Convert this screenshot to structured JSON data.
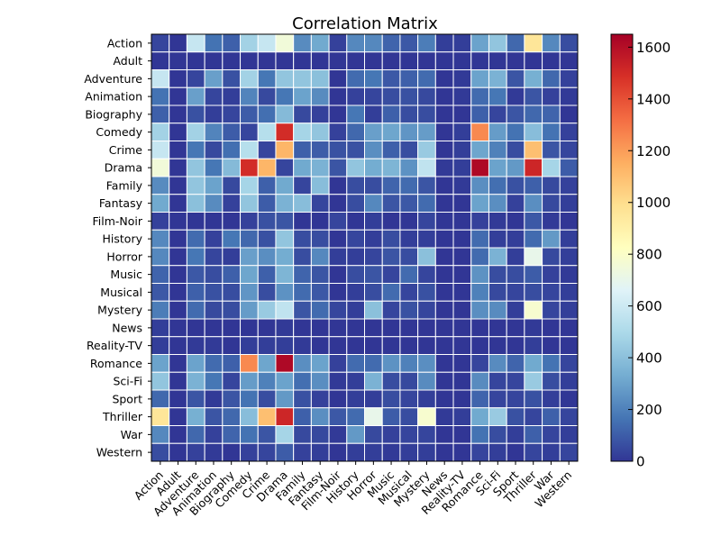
{
  "chart_data": {
    "type": "heatmap",
    "title": "Correlation Matrix",
    "categories": [
      "Action",
      "Adult",
      "Adventure",
      "Animation",
      "Biography",
      "Comedy",
      "Crime",
      "Drama",
      "Family",
      "Fantasy",
      "Film-Noir",
      "History",
      "Horror",
      "Music",
      "Musical",
      "Mystery",
      "News",
      "Reality-TV",
      "Romance",
      "Sci-Fi",
      "Sport",
      "Thriller",
      "War",
      "Western"
    ],
    "colorbar": {
      "min": 0,
      "max": 1650,
      "ticks": [
        0,
        200,
        400,
        600,
        800,
        1000,
        1200,
        1400,
        1600
      ],
      "colormap": "RdYlBu_r"
    },
    "matrix": [
      [
        40,
        0,
        580,
        160,
        110,
        470,
        580,
        750,
        230,
        320,
        30,
        220,
        220,
        120,
        90,
        190,
        20,
        20,
        300,
        420,
        130,
        960,
        220,
        60
      ],
      [
        0,
        0,
        0,
        0,
        0,
        0,
        0,
        0,
        0,
        0,
        0,
        0,
        0,
        0,
        0,
        0,
        0,
        0,
        0,
        0,
        0,
        0,
        0,
        0
      ],
      [
        580,
        0,
        40,
        290,
        70,
        470,
        170,
        420,
        420,
        400,
        0,
        140,
        170,
        90,
        110,
        140,
        0,
        10,
        300,
        350,
        80,
        340,
        130,
        30
      ],
      [
        160,
        0,
        290,
        40,
        20,
        210,
        50,
        170,
        300,
        230,
        0,
        30,
        40,
        60,
        70,
        50,
        0,
        10,
        140,
        170,
        10,
        80,
        30,
        10
      ],
      [
        110,
        0,
        70,
        20,
        40,
        100,
        150,
        380,
        50,
        30,
        0,
        170,
        20,
        110,
        60,
        60,
        0,
        0,
        110,
        40,
        80,
        130,
        120,
        0
      ],
      [
        470,
        0,
        470,
        210,
        100,
        40,
        530,
        1500,
        480,
        420,
        30,
        130,
        290,
        310,
        260,
        280,
        0,
        20,
        1250,
        280,
        160,
        390,
        160,
        30
      ],
      [
        580,
        0,
        170,
        50,
        150,
        530,
        40,
        1130,
        110,
        100,
        70,
        70,
        240,
        110,
        60,
        440,
        0,
        20,
        310,
        200,
        60,
        1100,
        80,
        40
      ],
      [
        750,
        0,
        420,
        170,
        380,
        1500,
        1130,
        40,
        320,
        350,
        80,
        420,
        330,
        360,
        250,
        560,
        10,
        20,
        1620,
        300,
        270,
        1520,
        480,
        100
      ],
      [
        230,
        0,
        420,
        300,
        50,
        480,
        110,
        320,
        40,
        390,
        0,
        60,
        60,
        120,
        140,
        80,
        0,
        10,
        240,
        150,
        70,
        110,
        50,
        30
      ],
      [
        320,
        0,
        400,
        230,
        30,
        420,
        100,
        350,
        390,
        40,
        0,
        60,
        220,
        80,
        90,
        140,
        0,
        0,
        300,
        240,
        30,
        240,
        50,
        20
      ],
      [
        30,
        0,
        0,
        0,
        0,
        30,
        70,
        80,
        0,
        0,
        40,
        0,
        20,
        0,
        0,
        40,
        0,
        0,
        30,
        10,
        0,
        90,
        10,
        0
      ],
      [
        220,
        0,
        140,
        30,
        170,
        130,
        70,
        420,
        60,
        60,
        0,
        40,
        20,
        60,
        20,
        20,
        0,
        0,
        140,
        20,
        20,
        140,
        270,
        20
      ],
      [
        220,
        0,
        170,
        40,
        20,
        290,
        240,
        330,
        60,
        220,
        20,
        20,
        40,
        80,
        60,
        400,
        0,
        0,
        140,
        350,
        20,
        700,
        50,
        20
      ],
      [
        120,
        0,
        90,
        60,
        110,
        310,
        110,
        360,
        120,
        80,
        0,
        60,
        80,
        40,
        140,
        40,
        0,
        0,
        250,
        60,
        60,
        100,
        30,
        10
      ],
      [
        90,
        0,
        110,
        70,
        60,
        260,
        60,
        250,
        140,
        90,
        0,
        20,
        60,
        140,
        40,
        70,
        0,
        0,
        200,
        50,
        40,
        60,
        40,
        20
      ],
      [
        190,
        0,
        140,
        50,
        60,
        280,
        440,
        560,
        80,
        140,
        40,
        20,
        400,
        40,
        70,
        40,
        0,
        0,
        240,
        230,
        20,
        780,
        40,
        20
      ],
      [
        20,
        0,
        0,
        0,
        0,
        0,
        0,
        10,
        0,
        0,
        0,
        0,
        0,
        0,
        0,
        0,
        0,
        0,
        0,
        0,
        0,
        10,
        0,
        0
      ],
      [
        20,
        0,
        10,
        10,
        0,
        20,
        20,
        20,
        10,
        0,
        0,
        0,
        0,
        0,
        0,
        0,
        0,
        0,
        0,
        0,
        0,
        20,
        0,
        0
      ],
      [
        300,
        0,
        300,
        140,
        110,
        1250,
        310,
        1620,
        240,
        300,
        30,
        140,
        140,
        250,
        200,
        240,
        0,
        0,
        40,
        230,
        120,
        320,
        160,
        40
      ],
      [
        420,
        0,
        350,
        170,
        40,
        280,
        200,
        300,
        150,
        240,
        10,
        20,
        350,
        60,
        50,
        230,
        0,
        0,
        230,
        40,
        40,
        440,
        60,
        20
      ],
      [
        130,
        0,
        80,
        10,
        80,
        160,
        60,
        270,
        70,
        30,
        0,
        20,
        20,
        60,
        40,
        20,
        0,
        0,
        120,
        40,
        40,
        70,
        20,
        0
      ],
      [
        960,
        0,
        340,
        80,
        130,
        390,
        1100,
        1520,
        110,
        240,
        90,
        140,
        700,
        100,
        60,
        780,
        10,
        20,
        320,
        440,
        70,
        40,
        110,
        40
      ],
      [
        220,
        0,
        130,
        30,
        120,
        160,
        80,
        480,
        50,
        50,
        10,
        270,
        50,
        30,
        40,
        40,
        0,
        0,
        160,
        60,
        20,
        110,
        40,
        20
      ],
      [
        60,
        0,
        30,
        10,
        0,
        30,
        40,
        100,
        30,
        20,
        0,
        20,
        20,
        10,
        20,
        20,
        0,
        0,
        40,
        20,
        0,
        40,
        20,
        40
      ]
    ]
  }
}
